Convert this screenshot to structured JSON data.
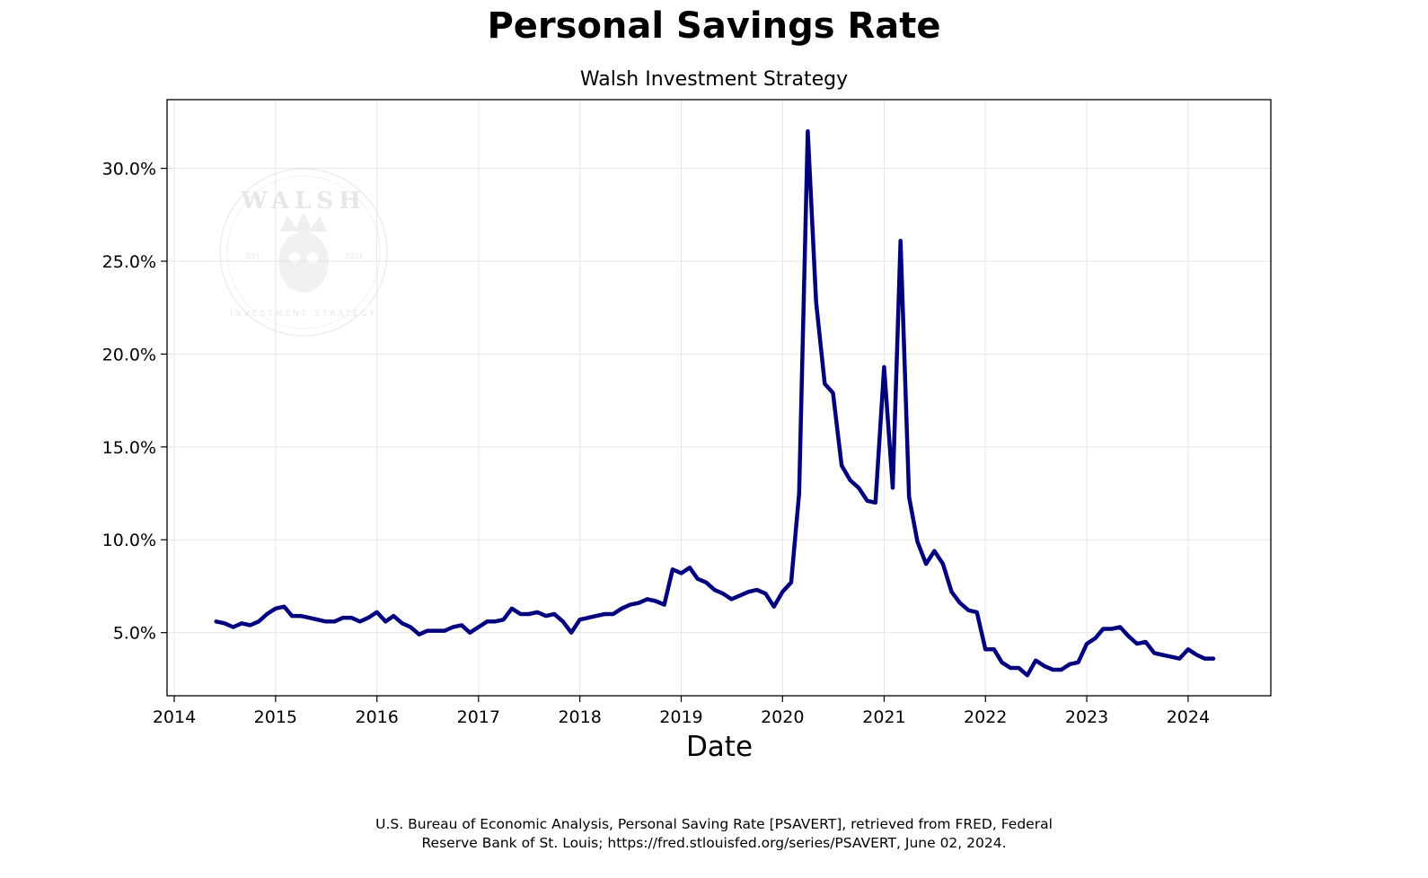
{
  "chart_data": {
    "type": "line",
    "title": "Personal Savings Rate",
    "subtitle": "Walsh Investment Strategy",
    "xlabel": "Date",
    "ylabel": "",
    "x_ticks": [
      "2014",
      "2015",
      "2016",
      "2017",
      "2018",
      "2019",
      "2020",
      "2021",
      "2022",
      "2023",
      "2024"
    ],
    "y_ticks": [
      5,
      10,
      15,
      20,
      25,
      30
    ],
    "y_tick_labels": [
      "5.0%",
      "10.0%",
      "15.0%",
      "20.0%",
      "25.0%",
      "30.0%"
    ],
    "xlim": [
      "2013-12-06",
      "2024-10-25"
    ],
    "ylim": [
      1.6,
      33.7
    ],
    "grid": true,
    "legend": "none",
    "line_color": "#00007f",
    "series": [
      {
        "x": [
          "2014-06",
          "2014-07",
          "2014-08",
          "2014-09",
          "2014-10",
          "2014-11",
          "2014-12",
          "2015-01",
          "2015-02",
          "2015-03",
          "2015-04",
          "2015-05",
          "2015-06",
          "2015-07",
          "2015-08",
          "2015-09",
          "2015-10",
          "2015-11",
          "2015-12",
          "2016-01",
          "2016-02",
          "2016-03",
          "2016-04",
          "2016-05",
          "2016-06",
          "2016-07",
          "2016-08",
          "2016-09",
          "2016-10",
          "2016-11",
          "2016-12",
          "2017-01",
          "2017-02",
          "2017-03",
          "2017-04",
          "2017-05",
          "2017-06",
          "2017-07",
          "2017-08",
          "2017-09",
          "2017-10",
          "2017-11",
          "2017-12",
          "2018-01",
          "2018-02",
          "2018-03",
          "2018-04",
          "2018-05",
          "2018-06",
          "2018-07",
          "2018-08",
          "2018-09",
          "2018-10",
          "2018-11",
          "2018-12",
          "2019-01",
          "2019-02",
          "2019-03",
          "2019-04",
          "2019-05",
          "2019-06",
          "2019-07",
          "2019-08",
          "2019-09",
          "2019-10",
          "2019-11",
          "2019-12",
          "2020-01",
          "2020-02",
          "2020-03",
          "2020-04",
          "2020-05",
          "2020-06",
          "2020-07",
          "2020-08",
          "2020-09",
          "2020-10",
          "2020-11",
          "2020-12",
          "2021-01",
          "2021-02",
          "2021-03",
          "2021-04",
          "2021-05",
          "2021-06",
          "2021-07",
          "2021-08",
          "2021-09",
          "2021-10",
          "2021-11",
          "2021-12",
          "2022-01",
          "2022-02",
          "2022-03",
          "2022-04",
          "2022-05",
          "2022-06",
          "2022-07",
          "2022-08",
          "2022-09",
          "2022-10",
          "2022-11",
          "2022-12",
          "2023-01",
          "2023-02",
          "2023-03",
          "2023-04",
          "2023-05",
          "2023-06",
          "2023-07",
          "2023-08",
          "2023-09",
          "2023-10",
          "2023-11",
          "2023-12",
          "2024-01",
          "2024-02",
          "2024-03",
          "2024-04"
        ],
        "y": [
          5.6,
          5.5,
          5.3,
          5.5,
          5.4,
          5.6,
          6.0,
          6.3,
          6.4,
          5.9,
          5.9,
          5.8,
          5.7,
          5.6,
          5.6,
          5.8,
          5.8,
          5.6,
          5.8,
          6.1,
          5.6,
          5.9,
          5.5,
          5.3,
          4.9,
          5.1,
          5.1,
          5.1,
          5.3,
          5.4,
          5.0,
          5.3,
          5.6,
          5.6,
          5.7,
          6.3,
          6.0,
          6.0,
          6.1,
          5.9,
          6.0,
          5.6,
          5.0,
          5.7,
          5.8,
          5.9,
          6.0,
          6.0,
          6.3,
          6.5,
          6.6,
          6.8,
          6.7,
          6.5,
          8.4,
          8.2,
          8.5,
          7.9,
          7.7,
          7.3,
          7.1,
          6.8,
          7.0,
          7.2,
          7.3,
          7.1,
          6.4,
          7.2,
          7.7,
          12.5,
          32.0,
          22.8,
          18.4,
          17.9,
          14.0,
          13.2,
          12.8,
          12.1,
          12.0,
          19.3,
          12.8,
          26.1,
          12.3,
          9.9,
          8.7,
          9.4,
          8.7,
          7.2,
          6.6,
          6.2,
          6.1,
          4.1,
          4.1,
          3.4,
          3.1,
          3.1,
          2.7,
          3.5,
          3.2,
          3.0,
          3.0,
          3.3,
          3.4,
          4.4,
          4.7,
          5.2,
          5.2,
          5.3,
          4.8,
          4.4,
          4.5,
          3.9,
          3.8,
          3.7,
          3.6,
          4.1,
          3.8,
          3.6,
          3.6
        ]
      }
    ]
  },
  "watermark": {
    "top_text": "WALSH",
    "left_text": "EST",
    "right_text": "2024",
    "bottom_text": "INVESTMENT STRATEGY"
  },
  "source_note": {
    "line1": "U.S. Bureau of Economic Analysis, Personal Saving Rate [PSAVERT], retrieved from FRED, Federal",
    "line2": "Reserve Bank of St. Louis; https://fred.stlouisfed.org/series/PSAVERT, June 02, 2024."
  }
}
